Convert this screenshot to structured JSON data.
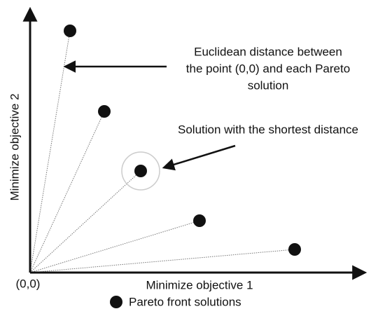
{
  "axes": {
    "x_label": "Minimize objective 1",
    "y_label": "Minimize objective 2",
    "origin_label": "(0,0)"
  },
  "annotations": {
    "distance": [
      "Euclidean distance between",
      "the point (0,0) and each Pareto",
      "solution"
    ],
    "shortest": "Solution with the shortest distance"
  },
  "legend": {
    "label": "Pareto front solutions"
  }
}
